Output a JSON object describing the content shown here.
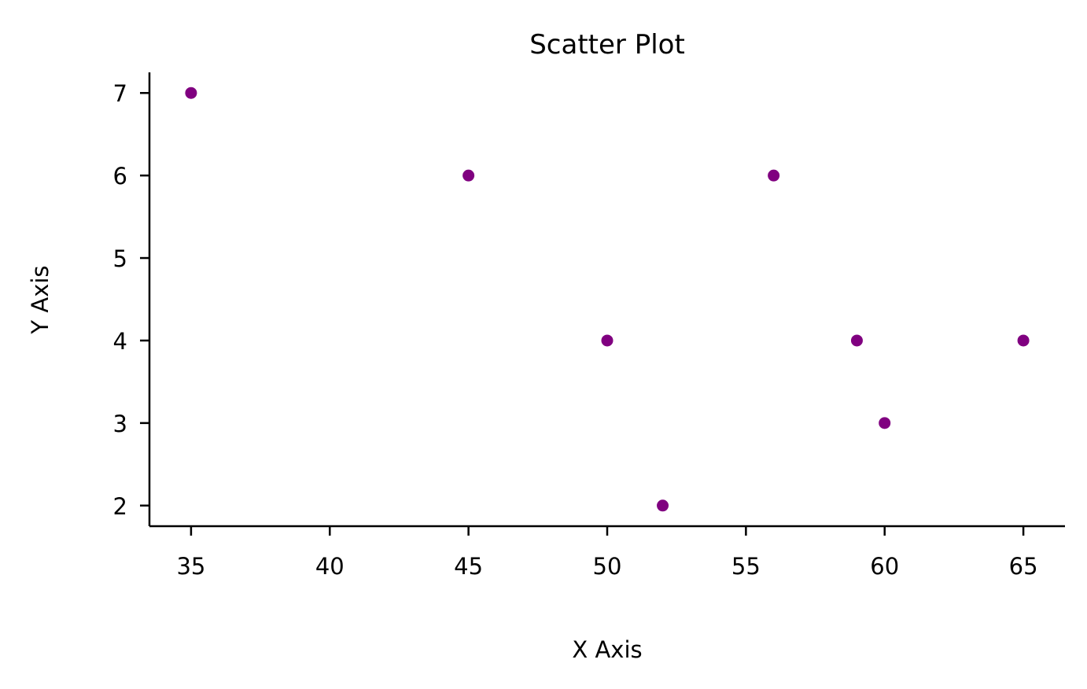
{
  "chart_data": {
    "type": "scatter",
    "title": "Scatter Plot",
    "xlabel": "X Axis",
    "ylabel": "Y Axis",
    "x_ticks": [
      35,
      40,
      45,
      50,
      55,
      60,
      65
    ],
    "y_ticks": [
      2,
      3,
      4,
      5,
      6,
      7
    ],
    "xlim": [
      33.5,
      66.5
    ],
    "ylim": [
      1.75,
      7.25
    ],
    "grid": false,
    "marker_color": "#800080",
    "points": [
      {
        "x": 35,
        "y": 7
      },
      {
        "x": 45,
        "y": 6
      },
      {
        "x": 50,
        "y": 4
      },
      {
        "x": 52,
        "y": 2
      },
      {
        "x": 56,
        "y": 6
      },
      {
        "x": 59,
        "y": 4
      },
      {
        "x": 60,
        "y": 3
      },
      {
        "x": 65,
        "y": 4
      }
    ]
  }
}
